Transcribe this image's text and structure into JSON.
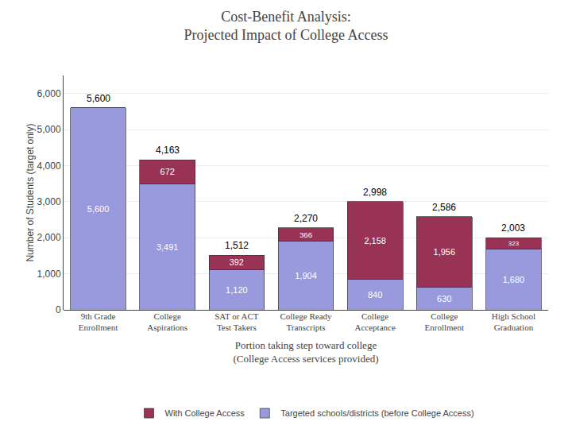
{
  "chart_data": {
    "type": "bar",
    "title": "Cost-Benefit Analysis:\nProjected Impact of College Access",
    "categories": [
      "9th Grade\nEnrollment",
      "College\nAspirations",
      "SAT or ACT\nTest Takers",
      "College Ready\nTranscripts",
      "College\nAcceptance",
      "College\nEnrollment",
      "High School\nGraduation"
    ],
    "series": [
      {
        "name": "Targeted schools/districts (before College Access)",
        "color": "#9999dd",
        "values": [
          5600,
          3491,
          1120,
          1904,
          840,
          630,
          1680
        ],
        "value_labels": [
          "5,600",
          "3,491",
          "1,120",
          "1,904",
          "840",
          "630",
          "1,680"
        ]
      },
      {
        "name": "With College Access",
        "color": "#993355",
        "values": [
          0,
          672,
          392,
          366,
          2158,
          1956,
          323
        ],
        "value_labels": [
          null,
          "672",
          "392",
          "366",
          "2,158",
          "1,956",
          "323"
        ]
      }
    ],
    "totals": [
      5600,
      4163,
      1512,
      2270,
      2998,
      2586,
      2003
    ],
    "total_labels": [
      "5,600",
      "4,163",
      "1,512",
      "2,270",
      "2,998",
      "2,586",
      "2,003"
    ],
    "xlabel": "Portion taking step toward college\n(College Access services provided)",
    "ylabel": "Number of Students (target only)",
    "ylim": [
      0,
      6500
    ],
    "yticks": [
      0,
      {
        "value": 1000,
        "label": "1,000"
      },
      {
        "value": 2000,
        "label": "2,000"
      },
      {
        "value": 3000,
        "label": "3,000"
      },
      {
        "value": 4000,
        "label": "4,000"
      },
      {
        "value": 5000,
        "label": "5,000"
      },
      {
        "value": 6000,
        "label": "6,000"
      }
    ],
    "stacked": true,
    "data_labels": true,
    "grid": true,
    "legend": "bottom"
  }
}
